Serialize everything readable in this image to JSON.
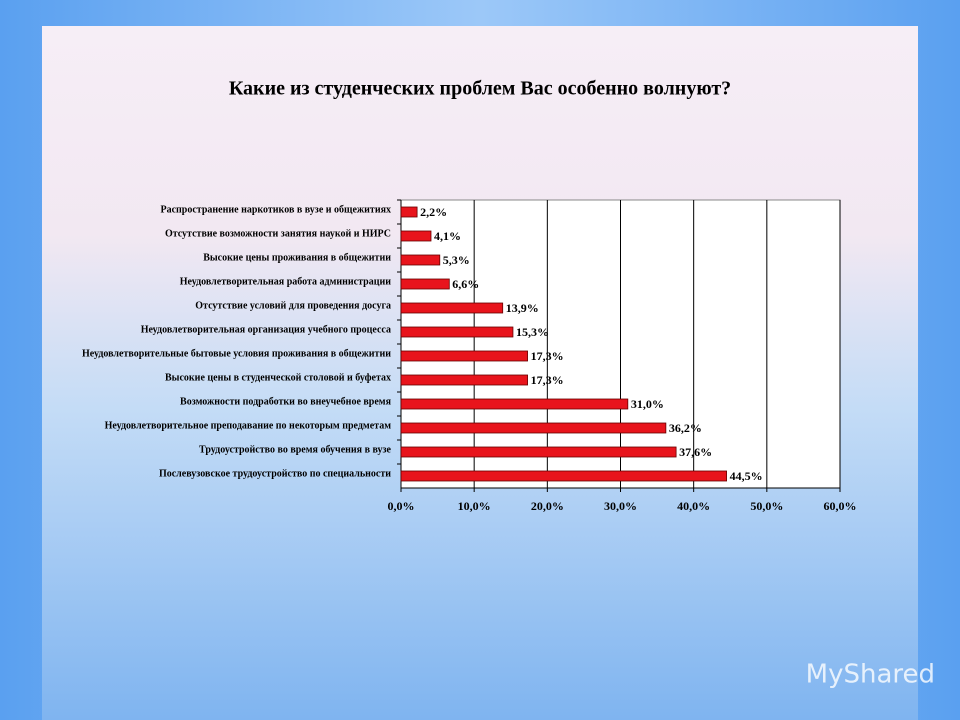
{
  "chart_data": {
    "type": "bar",
    "orientation": "horizontal",
    "title": "Какие из студенческих проблем Вас особенно волнуют?",
    "categories": [
      "Распространение наркотиков в вузе и общежитиях",
      "Отсутствие возможности занятия наукой и НИРС",
      "Высокие цены проживания в общежитии",
      "Неудовлетворительная работа администрации",
      "Отсутствие условий для проведения досуга",
      "Неудовлетворительная организация учебного процесса",
      "Неудовлетворительные бытовые условия проживания в общежитии",
      "Высокие цены в студенческой столовой и буфетах",
      "Возможности подработки во внеучебное время",
      "Неудовлетворительное преподавание по некоторым предметам",
      "Трудоустройство во время обучения в вузе",
      "Послевузовское трудоустройство по специальности"
    ],
    "values": [
      2.2,
      4.1,
      5.3,
      6.6,
      13.9,
      15.3,
      17.3,
      17.3,
      31.0,
      36.2,
      37.6,
      44.5
    ],
    "value_labels": [
      "2,2%",
      "4,1%",
      "5,3%",
      "6,6%",
      "13,9%",
      "15,3%",
      "17,3%",
      "17,3%",
      "31,0%",
      "36,2%",
      "37,6%",
      "44,5%"
    ],
    "color": "#e8141c",
    "xlim": [
      0,
      60
    ],
    "xticks": [
      {
        "value": 0,
        "label": "0,0%"
      },
      {
        "value": 10,
        "label": "10,0%"
      },
      {
        "value": 20,
        "label": "20,0%"
      },
      {
        "value": 30,
        "label": "30,0%"
      },
      {
        "value": 40,
        "label": "40,0%"
      },
      {
        "value": 50,
        "label": "50,0%"
      },
      {
        "value": 60,
        "label": "60,0%"
      }
    ],
    "grid": true
  },
  "watermark": "MyShared"
}
